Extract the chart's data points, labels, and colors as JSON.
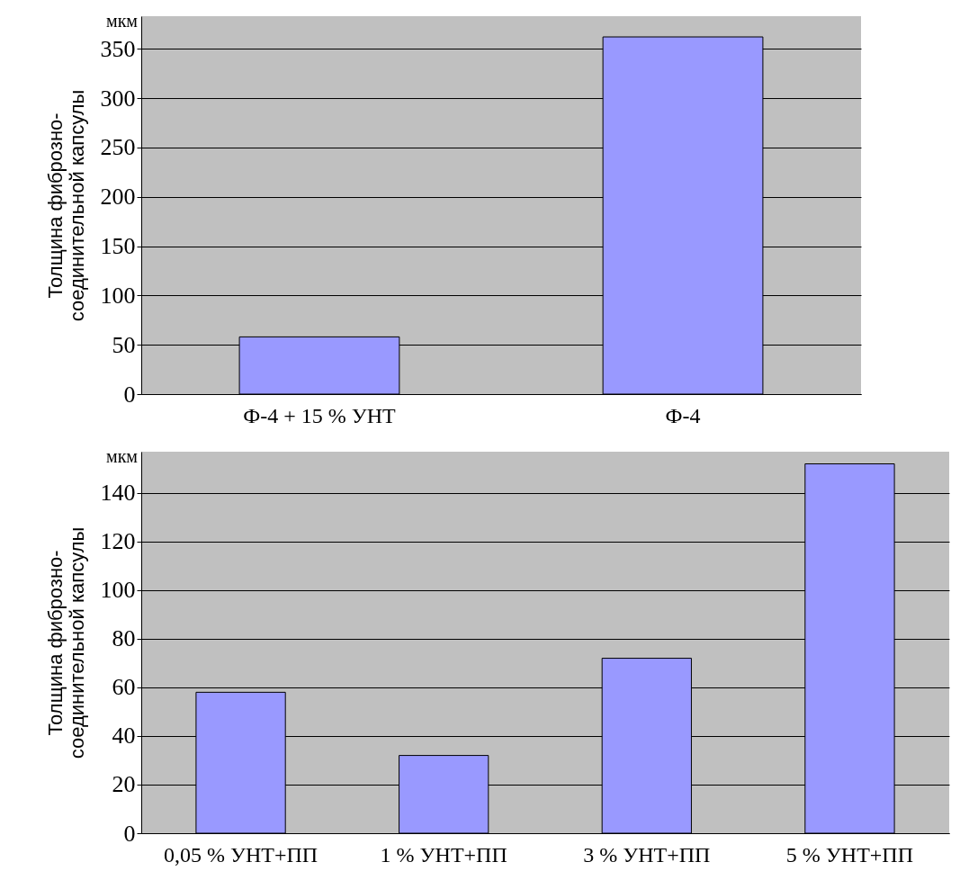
{
  "chart_data": [
    {
      "type": "bar",
      "categories": [
        "Ф-4 + 15 % УНТ",
        "Ф-4"
      ],
      "values": [
        58,
        362
      ],
      "color": "#9999ff",
      "ylabel": "Толщина фиброзно-соединительной капсулы",
      "annotations": [
        "мкм"
      ],
      "ylim": [
        0,
        383
      ],
      "yticks": [
        0,
        50,
        100,
        150,
        200,
        250,
        300,
        350
      ],
      "grid": "y"
    },
    {
      "type": "bar",
      "categories": [
        "0,05 % УНТ+ПП",
        "1 % УНТ+ПП",
        "3 % УНТ+ПП",
        "5 % УНТ+ПП"
      ],
      "values": [
        58,
        32,
        72,
        152
      ],
      "color": "#9999ff",
      "ylabel": "Толщина фиброзно-соединительной капсулы",
      "annotations": [
        "мкм"
      ],
      "ylim": [
        0,
        157
      ],
      "yticks": [
        0,
        20,
        40,
        60,
        80,
        100,
        120,
        140
      ],
      "grid": "y"
    }
  ]
}
